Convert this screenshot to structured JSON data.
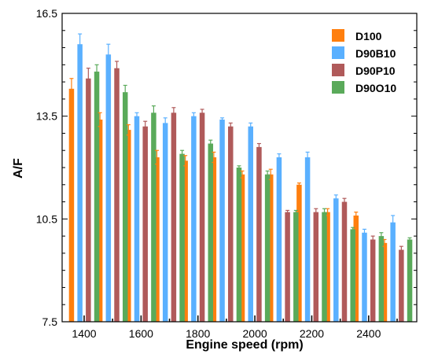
{
  "chart_data": {
    "type": "bar",
    "title": "",
    "xlabel": "Engine speed (rpm)",
    "ylabel": "A/F",
    "ylim": [
      7.5,
      16.5
    ],
    "yticks": [
      "7.5",
      "10.5",
      "13.5",
      "16.5"
    ],
    "categories": [
      "1400",
      "1500",
      "1600",
      "1700",
      "1800",
      "1900",
      "2000",
      "2100",
      "2200",
      "2300",
      "2400",
      "2500"
    ],
    "xtick_labels": [
      "1400",
      "1600",
      "1800",
      "2000",
      "2200",
      "2400"
    ],
    "legend_position": "top-right",
    "grid": false,
    "series": [
      {
        "name": "D100",
        "color": "#ff7f0e",
        "values": [
          14.3,
          13.4,
          13.1,
          12.3,
          12.2,
          12.3,
          11.8,
          11.8,
          11.5,
          10.7,
          10.6,
          9.8
        ],
        "errors": [
          0.3,
          0.2,
          0.15,
          0.2,
          0.15,
          0.15,
          0.1,
          0.15,
          0.05,
          0.1,
          0.1,
          0.1
        ]
      },
      {
        "name": "D90B10",
        "color": "#5ab0ff",
        "values": [
          15.6,
          15.3,
          13.5,
          13.3,
          13.5,
          13.4,
          13.2,
          12.3,
          12.3,
          11.1,
          10.1,
          10.4
        ],
        "errors": [
          0.3,
          0.3,
          0.1,
          0.15,
          0.1,
          0.05,
          0.1,
          0.1,
          0.15,
          0.1,
          0.1,
          0.2
        ]
      },
      {
        "name": "D90P10",
        "color": "#b05a5a",
        "values": [
          14.6,
          14.9,
          13.2,
          13.6,
          13.6,
          13.2,
          12.6,
          10.7,
          10.7,
          11.0,
          9.9,
          9.6
        ],
        "errors": [
          0.3,
          0.2,
          0.15,
          0.15,
          0.1,
          0.1,
          0.1,
          0.05,
          0.1,
          0.1,
          0.1,
          0.1
        ]
      },
      {
        "name": "D90O10",
        "color": "#5aaa5a",
        "values": [
          14.8,
          14.2,
          13.6,
          12.4,
          12.7,
          12.0,
          11.8,
          10.7,
          10.7,
          10.2,
          10.0,
          9.9
        ],
        "errors": [
          0.2,
          0.2,
          0.2,
          0.1,
          0.1,
          0.05,
          0.1,
          0.05,
          0.1,
          0.05,
          0.1,
          0.05
        ]
      }
    ]
  }
}
